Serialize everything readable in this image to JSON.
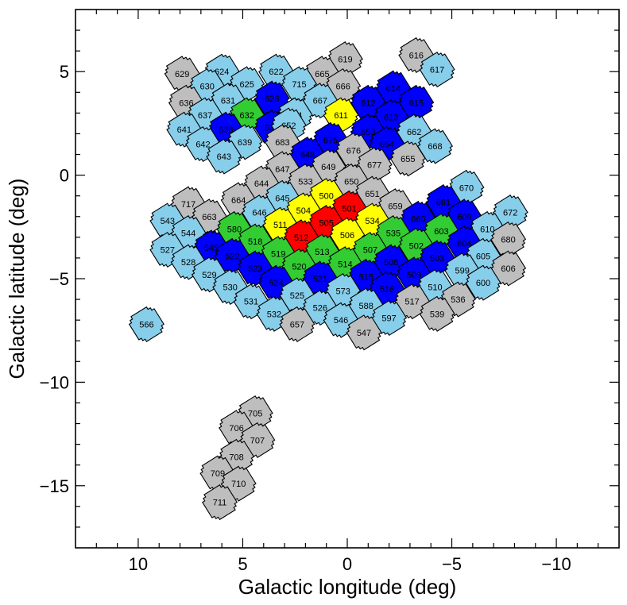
{
  "chart_data": {
    "type": "scatter",
    "xlabel": "Galactic longitude (deg)",
    "ylabel": "Galactic latitude (deg)",
    "xlim": [
      13,
      -13
    ],
    "ylim": [
      -18,
      8
    ],
    "x_ticks": [
      10,
      5,
      0,
      -5,
      -10
    ],
    "x_tick_labels": [
      "10",
      "5",
      "0",
      "−5",
      "−10"
    ],
    "y_ticks": [
      5,
      0,
      -5,
      -10,
      -15
    ],
    "y_tick_labels": [
      "5",
      "0",
      "−5",
      "−10",
      "−15"
    ],
    "grid": false,
    "palette": {
      "red": "#ff0000",
      "yellow": "#ffff00",
      "green": "#33cc33",
      "blue": "#0000ff",
      "skyblue": "#87ceeb",
      "gray": "#bebebe"
    },
    "fields": [
      {
        "id": "629",
        "l": 7.9,
        "b": 4.9,
        "color": "gray"
      },
      {
        "id": "624",
        "l": 6.0,
        "b": 5.0,
        "color": "skyblue"
      },
      {
        "id": "622",
        "l": 3.4,
        "b": 5.0,
        "color": "skyblue"
      },
      {
        "id": "619",
        "l": 0.1,
        "b": 5.6,
        "color": "gray"
      },
      {
        "id": "616",
        "l": -3.3,
        "b": 5.8,
        "color": "gray"
      },
      {
        "id": "617",
        "l": -4.3,
        "b": 5.1,
        "color": "skyblue"
      },
      {
        "id": "665",
        "l": 1.2,
        "b": 4.9,
        "color": "gray"
      },
      {
        "id": "630",
        "l": 6.7,
        "b": 4.3,
        "color": "skyblue"
      },
      {
        "id": "625",
        "l": 4.8,
        "b": 4.4,
        "color": "skyblue"
      },
      {
        "id": "715",
        "l": 2.3,
        "b": 4.4,
        "color": "skyblue"
      },
      {
        "id": "666",
        "l": 0.2,
        "b": 4.3,
        "color": "gray"
      },
      {
        "id": "614",
        "l": -2.2,
        "b": 4.2,
        "color": "blue"
      },
      {
        "id": "636",
        "l": 7.7,
        "b": 3.5,
        "color": "gray"
      },
      {
        "id": "631",
        "l": 5.7,
        "b": 3.6,
        "color": "skyblue"
      },
      {
        "id": "626",
        "l": 3.6,
        "b": 3.7,
        "color": "blue"
      },
      {
        "id": "667",
        "l": 1.3,
        "b": 3.6,
        "color": "skyblue"
      },
      {
        "id": "612",
        "l": -1.0,
        "b": 3.5,
        "color": "blue"
      },
      {
        "id": "615",
        "l": -3.3,
        "b": 3.5,
        "color": "blue"
      },
      {
        "id": "637",
        "l": 6.8,
        "b": 2.9,
        "color": "skyblue"
      },
      {
        "id": "632",
        "l": 4.8,
        "b": 2.9,
        "color": "green"
      },
      {
        "id": "714",
        "l": 2.5,
        "b": 2.9,
        "color": "skyblue"
      },
      {
        "id": "611",
        "l": 0.3,
        "b": 2.9,
        "color": "yellow"
      },
      {
        "id": "613",
        "l": -2.1,
        "b": 2.8,
        "color": "blue"
      },
      {
        "id": "641",
        "l": 7.8,
        "b": 2.2,
        "color": "skyblue"
      },
      {
        "id": "638",
        "l": 5.8,
        "b": 2.2,
        "color": "blue"
      },
      {
        "id": "635",
        "l": 3.6,
        "b": 2.3,
        "color": "blue"
      },
      {
        "id": "652",
        "l": 2.8,
        "b": 2.4,
        "color": "skyblue"
      },
      {
        "id": "653",
        "l": -1.0,
        "b": 2.1,
        "color": "blue"
      },
      {
        "id": "662",
        "l": -3.2,
        "b": 2.1,
        "color": "skyblue"
      },
      {
        "id": "642",
        "l": 6.9,
        "b": 1.5,
        "color": "skyblue"
      },
      {
        "id": "639",
        "l": 4.9,
        "b": 1.6,
        "color": "skyblue"
      },
      {
        "id": "683",
        "l": 3.1,
        "b": 1.6,
        "color": "gray"
      },
      {
        "id": "675",
        "l": 0.8,
        "b": 1.7,
        "color": "blue"
      },
      {
        "id": "654",
        "l": -1.9,
        "b": 1.5,
        "color": "blue"
      },
      {
        "id": "668",
        "l": -4.2,
        "b": 1.4,
        "color": "skyblue"
      },
      {
        "id": "643",
        "l": 5.9,
        "b": 0.9,
        "color": "skyblue"
      },
      {
        "id": "648",
        "l": 1.9,
        "b": 1.0,
        "color": "blue"
      },
      {
        "id": "676",
        "l": -0.3,
        "b": 1.2,
        "color": "gray"
      },
      {
        "id": "655",
        "l": -2.9,
        "b": 0.8,
        "color": "gray"
      },
      {
        "id": "647",
        "l": 3.1,
        "b": 0.3,
        "color": "gray"
      },
      {
        "id": "649",
        "l": 0.9,
        "b": 0.4,
        "color": "gray"
      },
      {
        "id": "677",
        "l": -1.3,
        "b": 0.5,
        "color": "gray"
      },
      {
        "id": "644",
        "l": 4.1,
        "b": -0.4,
        "color": "gray"
      },
      {
        "id": "533",
        "l": 2.0,
        "b": -0.3,
        "color": "gray"
      },
      {
        "id": "650",
        "l": -0.2,
        "b": -0.3,
        "color": "gray"
      },
      {
        "id": "670",
        "l": -5.7,
        "b": -0.6,
        "color": "skyblue"
      },
      {
        "id": "500",
        "l": 1.0,
        "b": -1.0,
        "color": "yellow"
      },
      {
        "id": "651",
        "l": -1.2,
        "b": -0.9,
        "color": "gray"
      },
      {
        "id": "645",
        "l": 3.1,
        "b": -1.1,
        "color": "skyblue"
      },
      {
        "id": "664",
        "l": 5.2,
        "b": -1.2,
        "color": "gray"
      },
      {
        "id": "717",
        "l": 7.6,
        "b": -1.4,
        "color": "gray"
      },
      {
        "id": "661",
        "l": -4.6,
        "b": -1.3,
        "color": "blue"
      },
      {
        "id": "504",
        "l": 2.1,
        "b": -1.7,
        "color": "yellow"
      },
      {
        "id": "501",
        "l": -0.1,
        "b": -1.6,
        "color": "red"
      },
      {
        "id": "659",
        "l": -2.3,
        "b": -1.5,
        "color": "gray"
      },
      {
        "id": "672",
        "l": -7.8,
        "b": -1.8,
        "color": "skyblue"
      },
      {
        "id": "663",
        "l": 6.6,
        "b": -2.0,
        "color": "gray"
      },
      {
        "id": "646",
        "l": 4.2,
        "b": -1.8,
        "color": "skyblue"
      },
      {
        "id": "660",
        "l": -3.4,
        "b": -2.1,
        "color": "blue"
      },
      {
        "id": "609",
        "l": -5.6,
        "b": -2.0,
        "color": "blue"
      },
      {
        "id": "543",
        "l": 8.6,
        "b": -2.2,
        "color": "skyblue"
      },
      {
        "id": "511",
        "l": 3.2,
        "b": -2.4,
        "color": "yellow"
      },
      {
        "id": "505",
        "l": 1.0,
        "b": -2.3,
        "color": "red"
      },
      {
        "id": "534",
        "l": -1.2,
        "b": -2.2,
        "color": "yellow"
      },
      {
        "id": "603",
        "l": -4.5,
        "b": -2.7,
        "color": "green"
      },
      {
        "id": "610",
        "l": -6.7,
        "b": -2.6,
        "color": "skyblue"
      },
      {
        "id": "544",
        "l": 7.6,
        "b": -2.8,
        "color": "skyblue"
      },
      {
        "id": "580",
        "l": 5.4,
        "b": -2.6,
        "color": "green"
      },
      {
        "id": "512",
        "l": 2.2,
        "b": -3.0,
        "color": "red"
      },
      {
        "id": "506",
        "l": 0.0,
        "b": -2.9,
        "color": "yellow"
      },
      {
        "id": "535",
        "l": -2.2,
        "b": -2.8,
        "color": "green"
      },
      {
        "id": "680",
        "l": -7.7,
        "b": -3.1,
        "color": "gray"
      },
      {
        "id": "518",
        "l": 4.4,
        "b": -3.2,
        "color": "green"
      },
      {
        "id": "502",
        "l": -3.3,
        "b": -3.4,
        "color": "green"
      },
      {
        "id": "604",
        "l": -5.6,
        "b": -3.3,
        "color": "blue"
      },
      {
        "id": "527",
        "l": 8.6,
        "b": -3.6,
        "color": "skyblue"
      },
      {
        "id": "545",
        "l": 6.5,
        "b": -3.5,
        "color": "blue"
      },
      {
        "id": "513",
        "l": 1.2,
        "b": -3.7,
        "color": "green"
      },
      {
        "id": "507",
        "l": -1.1,
        "b": -3.6,
        "color": "green"
      },
      {
        "id": "605",
        "l": -6.5,
        "b": -3.9,
        "color": "skyblue"
      },
      {
        "id": "519",
        "l": 3.3,
        "b": -3.8,
        "color": "green"
      },
      {
        "id": "522",
        "l": 5.5,
        "b": -3.9,
        "color": "blue"
      },
      {
        "id": "503",
        "l": -4.3,
        "b": -4.0,
        "color": "blue"
      },
      {
        "id": "528",
        "l": 7.6,
        "b": -4.2,
        "color": "skyblue"
      },
      {
        "id": "508",
        "l": -2.1,
        "b": -4.2,
        "color": "blue"
      },
      {
        "id": "520",
        "l": 2.3,
        "b": -4.4,
        "color": "green"
      },
      {
        "id": "514",
        "l": 0.1,
        "b": -4.3,
        "color": "green"
      },
      {
        "id": "606",
        "l": -7.7,
        "b": -4.5,
        "color": "gray"
      },
      {
        "id": "523",
        "l": 4.4,
        "b": -4.5,
        "color": "blue"
      },
      {
        "id": "599",
        "l": -5.5,
        "b": -4.6,
        "color": "skyblue"
      },
      {
        "id": "529",
        "l": 6.6,
        "b": -4.8,
        "color": "skyblue"
      },
      {
        "id": "509",
        "l": -3.2,
        "b": -4.8,
        "color": "blue"
      },
      {
        "id": "515",
        "l": -0.9,
        "b": -4.9,
        "color": "blue"
      },
      {
        "id": "521",
        "l": 1.3,
        "b": -5.0,
        "color": "blue"
      },
      {
        "id": "524",
        "l": 3.4,
        "b": -5.2,
        "color": "blue"
      },
      {
        "id": "600",
        "l": -6.5,
        "b": -5.2,
        "color": "skyblue"
      },
      {
        "id": "530",
        "l": 5.6,
        "b": -5.4,
        "color": "skyblue"
      },
      {
        "id": "510",
        "l": -4.2,
        "b": -5.4,
        "color": "skyblue"
      },
      {
        "id": "516",
        "l": -1.9,
        "b": -5.5,
        "color": "blue"
      },
      {
        "id": "573",
        "l": 0.2,
        "b": -5.6,
        "color": "skyblue"
      },
      {
        "id": "525",
        "l": 2.4,
        "b": -5.8,
        "color": "skyblue"
      },
      {
        "id": "536",
        "l": -5.3,
        "b": -6.0,
        "color": "gray"
      },
      {
        "id": "531",
        "l": 4.6,
        "b": -6.1,
        "color": "skyblue"
      },
      {
        "id": "517",
        "l": -3.1,
        "b": -6.1,
        "color": "gray"
      },
      {
        "id": "588",
        "l": -0.9,
        "b": -6.3,
        "color": "skyblue"
      },
      {
        "id": "526",
        "l": 1.3,
        "b": -6.4,
        "color": "skyblue"
      },
      {
        "id": "566",
        "l": 9.6,
        "b": -7.2,
        "color": "skyblue"
      },
      {
        "id": "532",
        "l": 3.5,
        "b": -6.7,
        "color": "skyblue"
      },
      {
        "id": "539",
        "l": -4.3,
        "b": -6.7,
        "color": "gray"
      },
      {
        "id": "597",
        "l": -2.0,
        "b": -6.9,
        "color": "skyblue"
      },
      {
        "id": "546",
        "l": 0.3,
        "b": -7.0,
        "color": "skyblue"
      },
      {
        "id": "657",
        "l": 2.4,
        "b": -7.2,
        "color": "gray"
      },
      {
        "id": "547",
        "l": -0.8,
        "b": -7.6,
        "color": "gray"
      },
      {
        "id": "705",
        "l": 4.4,
        "b": -11.5,
        "color": "gray"
      },
      {
        "id": "706",
        "l": 5.3,
        "b": -12.2,
        "color": "gray"
      },
      {
        "id": "707",
        "l": 4.3,
        "b": -12.8,
        "color": "gray"
      },
      {
        "id": "708",
        "l": 5.3,
        "b": -13.6,
        "color": "gray"
      },
      {
        "id": "709",
        "l": 6.2,
        "b": -14.4,
        "color": "gray"
      },
      {
        "id": "710",
        "l": 5.2,
        "b": -14.9,
        "color": "gray"
      },
      {
        "id": "711",
        "l": 6.1,
        "b": -15.8,
        "color": "gray"
      }
    ]
  }
}
